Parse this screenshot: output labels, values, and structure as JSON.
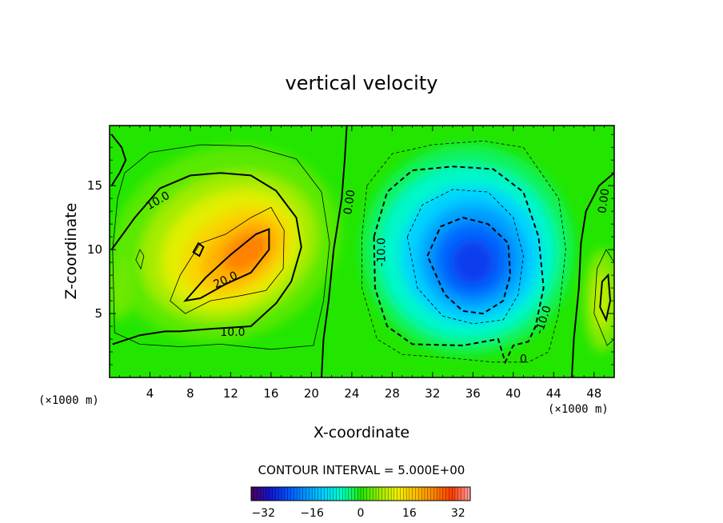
{
  "chart_data": {
    "type": "heatmap",
    "title": "vertical velocity",
    "xlabel": "X-coordinate",
    "ylabel": "Z-coordinate",
    "x_unit": "(×1000 m)",
    "y_unit": "(×1000 m)",
    "xlim": [
      0,
      50
    ],
    "ylim": [
      0,
      19.7
    ],
    "x_ticks": [
      4,
      8,
      12,
      16,
      20,
      24,
      28,
      32,
      36,
      40,
      44,
      48
    ],
    "y_ticks": [
      5,
      10,
      15
    ],
    "contour_interval_label": "CONTOUR INTERVAL = 5.000E+00",
    "contour_interval": 5,
    "contour_labels": [
      {
        "text": "10.0",
        "x": 4.8,
        "z": 13.8,
        "angle": -30
      },
      {
        "text": "20.0",
        "x": 11.5,
        "z": 7.6,
        "angle": -25
      },
      {
        "text": "10.0",
        "x": 12.2,
        "z": 3.5,
        "angle": 0
      },
      {
        "text": "0.00",
        "x": 23.8,
        "z": 13.7,
        "angle": -82
      },
      {
        "text": "-10.0",
        "x": 27.0,
        "z": 9.8,
        "angle": -90
      },
      {
        "text": "-10.0",
        "x": 43.0,
        "z": 4.5,
        "angle": -72
      },
      {
        "text": "0.00",
        "x": 49.0,
        "z": 13.8,
        "angle": -82
      },
      {
        "text": "0",
        "x": 41.0,
        "z": 1.4,
        "angle": 0
      }
    ],
    "colorbar": {
      "range": [
        -36,
        36
      ],
      "ticks": [
        -32,
        -16,
        0,
        16,
        32
      ],
      "tick_labels": [
        "−32",
        "−16",
        "0",
        "16",
        "32"
      ]
    },
    "field_features": [
      {
        "name": "updraft-core",
        "x": 13.5,
        "z": 9.8,
        "peak": 24
      },
      {
        "name": "downdraft-core",
        "x": 36.0,
        "z": 9.0,
        "peak": -26
      },
      {
        "name": "right-edge-updraft",
        "x": 48.7,
        "z": 6.0,
        "peak": 9
      }
    ]
  }
}
